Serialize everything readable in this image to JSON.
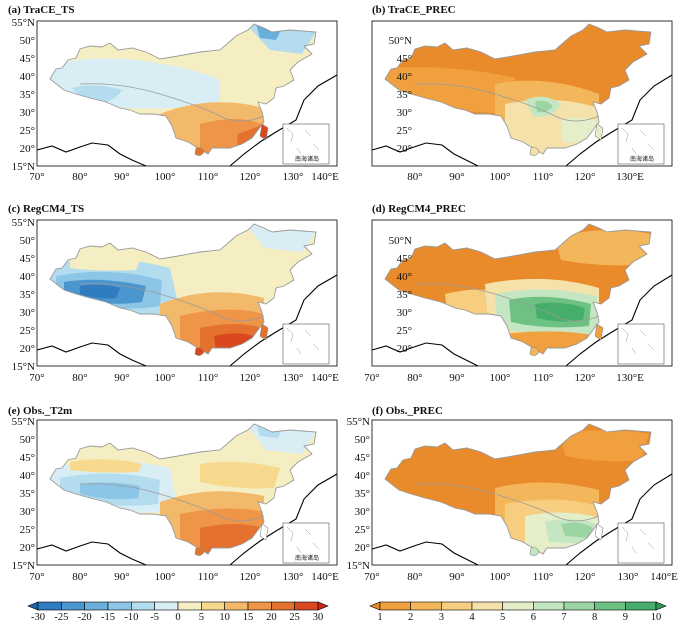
{
  "chart_data": {
    "type": "map-panels",
    "longitude_ticks": [
      "70°",
      "80°",
      "90°",
      "100°",
      "110°",
      "120°",
      "130°",
      "140°E"
    ],
    "longitude_ticks_short": [
      "80°",
      "90°",
      "100°",
      "110°",
      "120°",
      "130°E"
    ],
    "latitude_ticks": [
      "15°N",
      "20°",
      "25°",
      "30°",
      "35°",
      "40°",
      "45°",
      "50°",
      "55°N"
    ],
    "latitude_ticks_short": [
      "20°",
      "25°",
      "30°",
      "35°",
      "40°",
      "45°",
      "50°N"
    ],
    "inset_label": "南海诸岛",
    "panels": [
      {
        "id": "a",
        "title": "(a) TraCE_TS",
        "variable": "TS",
        "palette": "temperature"
      },
      {
        "id": "b",
        "title": "(b) TraCE_PREC",
        "variable": "PREC",
        "palette": "precipitation"
      },
      {
        "id": "c",
        "title": "(c) RegCM4_TS",
        "variable": "TS",
        "palette": "temperature"
      },
      {
        "id": "d",
        "title": "(d) RegCM4_PREC",
        "variable": "PREC",
        "palette": "precipitation"
      },
      {
        "id": "e",
        "title": "(e) Obs._T2m",
        "variable": "T2m",
        "palette": "temperature"
      },
      {
        "id": "f",
        "title": "(f) Obs._PREC",
        "variable": "PREC",
        "palette": "precipitation"
      }
    ],
    "colorbars": [
      {
        "name": "temperature",
        "levels": [
          -30,
          -25,
          -20,
          -15,
          -10,
          -5,
          0,
          5,
          10,
          15,
          20,
          25,
          30
        ],
        "colors": [
          "#1f5fa8",
          "#2f7cc0",
          "#4a96cf",
          "#6aafdc",
          "#8cc5e6",
          "#b3dcef",
          "#d8eef4",
          "#f5eec3",
          "#f6d98d",
          "#f3b96a",
          "#ee9548",
          "#e5712f",
          "#d9481f",
          "#c8281c"
        ]
      },
      {
        "name": "precipitation",
        "levels": [
          1,
          2,
          3,
          4,
          5,
          6,
          7,
          8,
          9,
          10
        ],
        "colors": [
          "#e98b2a",
          "#f0a03e",
          "#f4b65a",
          "#f7cd80",
          "#f5e2ab",
          "#e4eec9",
          "#c5e6c2",
          "#9bd5a3",
          "#6cc183",
          "#46ae6a",
          "#2e9955"
        ]
      }
    ]
  }
}
